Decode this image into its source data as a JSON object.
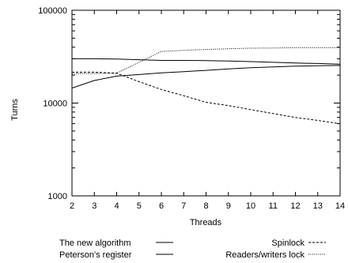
{
  "chart_data": {
    "type": "line",
    "xlabel": "Threads",
    "ylabel": "Turns",
    "xlim": [
      2,
      14
    ],
    "ylim": [
      1000,
      100000
    ],
    "yscale": "log",
    "grid": false,
    "legend_position": "bottom",
    "x_ticks": [
      2,
      3,
      4,
      5,
      6,
      7,
      8,
      9,
      10,
      11,
      12,
      13,
      14
    ],
    "y_ticks": [
      1000,
      10000,
      100000
    ],
    "y_tick_labels": [
      "1000",
      "10000",
      "100000"
    ],
    "series": [
      {
        "name": "The new algorithm",
        "style": "solid",
        "x": [
          2,
          3,
          4,
          5,
          6,
          7,
          8,
          9,
          10,
          11,
          12,
          13,
          14
        ],
        "y": [
          30000,
          30000,
          29800,
          29300,
          28800,
          28800,
          28700,
          28400,
          28000,
          27500,
          27000,
          26700,
          26200
        ]
      },
      {
        "name": "Peterson's register",
        "style": "solid",
        "x": [
          2,
          3,
          4,
          5,
          6,
          7,
          8,
          9,
          10,
          11,
          12,
          13,
          14
        ],
        "y": [
          14500,
          17500,
          19500,
          20300,
          21200,
          21800,
          22500,
          23300,
          24000,
          24500,
          25000,
          25200,
          25400
        ]
      },
      {
        "name": "Spinlock",
        "style": "dashed",
        "x": [
          2,
          3,
          4,
          5,
          6,
          7,
          8,
          9,
          10,
          11,
          12,
          13,
          14
        ],
        "y": [
          21500,
          21500,
          21000,
          17000,
          14000,
          12000,
          10200,
          9400,
          8500,
          7700,
          7000,
          6500,
          6000
        ]
      },
      {
        "name": "Readers/writers lock",
        "style": "dotted",
        "x": [
          2,
          3,
          4,
          5,
          6,
          7,
          8,
          9,
          10,
          11,
          12,
          13,
          14
        ],
        "y": [
          20800,
          20800,
          21000,
          27500,
          36000,
          37000,
          37800,
          38500,
          39000,
          39200,
          39500,
          39500,
          39500
        ]
      }
    ]
  }
}
